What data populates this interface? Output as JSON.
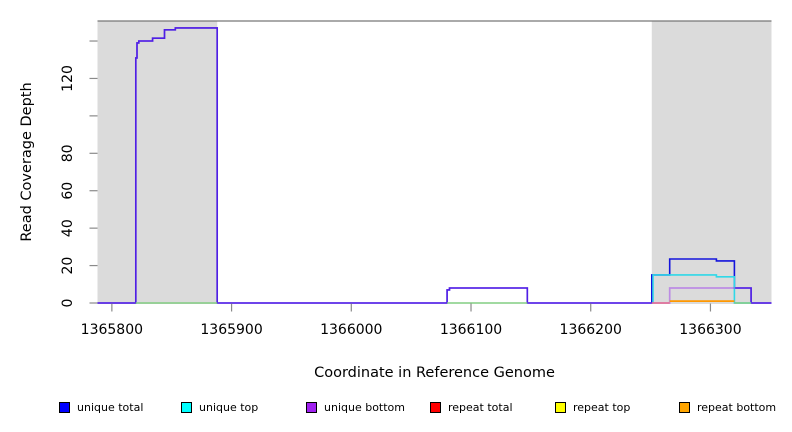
{
  "chart_data": {
    "type": "line",
    "subtype": "step-coverage-plot",
    "title": "",
    "xlabel": "Coordinate in Reference Genome",
    "ylabel": "Read Coverage Depth",
    "x_axis": {
      "range": [
        1365788,
        1366351
      ],
      "ticks": [
        1365800,
        1365900,
        1366000,
        1366100,
        1366200,
        1366300
      ],
      "tick_labels": [
        "1365800",
        "1365900",
        "1366000",
        "1366100",
        "1366200",
        "1366300"
      ]
    },
    "y_axis": {
      "range": [
        0,
        150.7
      ],
      "ticks": [
        0,
        20,
        40,
        60,
        80,
        100,
        120,
        140
      ],
      "tick_labels": [
        "0",
        "20",
        "40",
        "60",
        "80",
        "",
        "120",
        ""
      ]
    },
    "grid": "off",
    "legend_position": "bottom",
    "shaded_regions": [
      {
        "x_from": 1365788,
        "x_to": 1365888
      },
      {
        "x_from": 1366251,
        "x_to": 1366351
      }
    ],
    "shaded_color": "#DBDBDB",
    "frame_top_color": "#777777",
    "tick_color": "#8a8a8a",
    "series": [
      {
        "name": "unique total",
        "legend_color": "#0000FF",
        "line_color": "#1414DC",
        "line_width": 1.6,
        "segments": [
          [
            [
              1365788,
              0
            ],
            [
              1365820,
              0
            ],
            [
              1365820,
              131
            ],
            [
              1365821,
              131
            ],
            [
              1365821,
              139
            ],
            [
              1365822.5,
              139
            ],
            [
              1365822.5,
              140
            ],
            [
              1365834,
              140
            ],
            [
              1365834,
              141.5
            ],
            [
              1365844,
              141.5
            ],
            [
              1365844,
              146
            ],
            [
              1365853,
              146
            ],
            [
              1365853,
              147
            ],
            [
              1365888,
              147
            ],
            [
              1365888,
              0
            ],
            [
              1366080,
              0
            ],
            [
              1366080,
              7
            ],
            [
              1366082,
              7
            ],
            [
              1366082,
              8
            ],
            [
              1366147,
              8
            ],
            [
              1366147,
              0
            ],
            [
              1366251,
              0
            ],
            [
              1366251,
              15
            ],
            [
              1366266,
              15
            ],
            [
              1366266,
              23.5
            ],
            [
              1366305,
              23.5
            ],
            [
              1366305,
              22.5
            ],
            [
              1366320,
              22.5
            ],
            [
              1366320,
              8
            ],
            [
              1366334,
              8
            ],
            [
              1366334,
              0
            ],
            [
              1366351,
              0
            ]
          ]
        ]
      },
      {
        "name": "unique top",
        "legend_color": "#00FFFF",
        "line_color": "#2FD8E8",
        "line_width": 1.6,
        "segments": [
          [
            [
              1366252,
              0
            ],
            [
              1366252,
              15
            ],
            [
              1366305,
              15
            ],
            [
              1366305,
              14
            ],
            [
              1366320,
              14
            ],
            [
              1366320,
              0
            ],
            [
              1366334,
              0
            ]
          ]
        ]
      },
      {
        "name": "unique bottom",
        "legend_color": "#A020F0",
        "line_color": "rgba(150,45,240,0.45)",
        "line_width": 1.7,
        "segments": [
          [
            [
              1365788,
              0
            ],
            [
              1365820,
              0
            ],
            [
              1365820,
              131
            ],
            [
              1365821,
              131
            ],
            [
              1365821,
              139
            ],
            [
              1365822.5,
              139
            ],
            [
              1365822.5,
              140
            ],
            [
              1365834,
              140
            ],
            [
              1365834,
              141.5
            ],
            [
              1365844,
              141.5
            ],
            [
              1365844,
              146
            ],
            [
              1365853,
              146
            ],
            [
              1365853,
              147
            ],
            [
              1365888,
              147
            ],
            [
              1365888,
              0
            ],
            [
              1366080,
              0
            ],
            [
              1366080,
              7
            ],
            [
              1366082,
              7
            ],
            [
              1366082,
              8
            ],
            [
              1366147,
              8
            ],
            [
              1366147,
              0
            ],
            [
              1366266,
              0
            ],
            [
              1366266,
              8
            ],
            [
              1366334,
              8
            ],
            [
              1366334,
              0
            ],
            [
              1366351,
              0
            ]
          ]
        ]
      },
      {
        "name": "repeat total",
        "legend_color": "#FF0000",
        "line_color": "#E8708C",
        "line_width": 1.5,
        "segments": [
          [
            [
              1366251,
              0
            ],
            [
              1366266,
              0
            ]
          ]
        ]
      },
      {
        "name": "repeat top",
        "legend_color": "#FFFF00",
        "line_color": "#82CD82",
        "line_width": 1.5,
        "segments": [
          [
            [
              1365820,
              0
            ],
            [
              1365888,
              0
            ]
          ],
          [
            [
              1366080,
              0
            ],
            [
              1366147,
              0
            ]
          ],
          [
            [
              1366320,
              0
            ],
            [
              1366334,
              0
            ]
          ]
        ]
      },
      {
        "name": "repeat bottom",
        "legend_color": "#FFA500",
        "line_color": "#FF9800",
        "line_width": 1.8,
        "segments": [
          [
            [
              1366266,
              1
            ],
            [
              1366320,
              1
            ]
          ]
        ]
      }
    ]
  }
}
